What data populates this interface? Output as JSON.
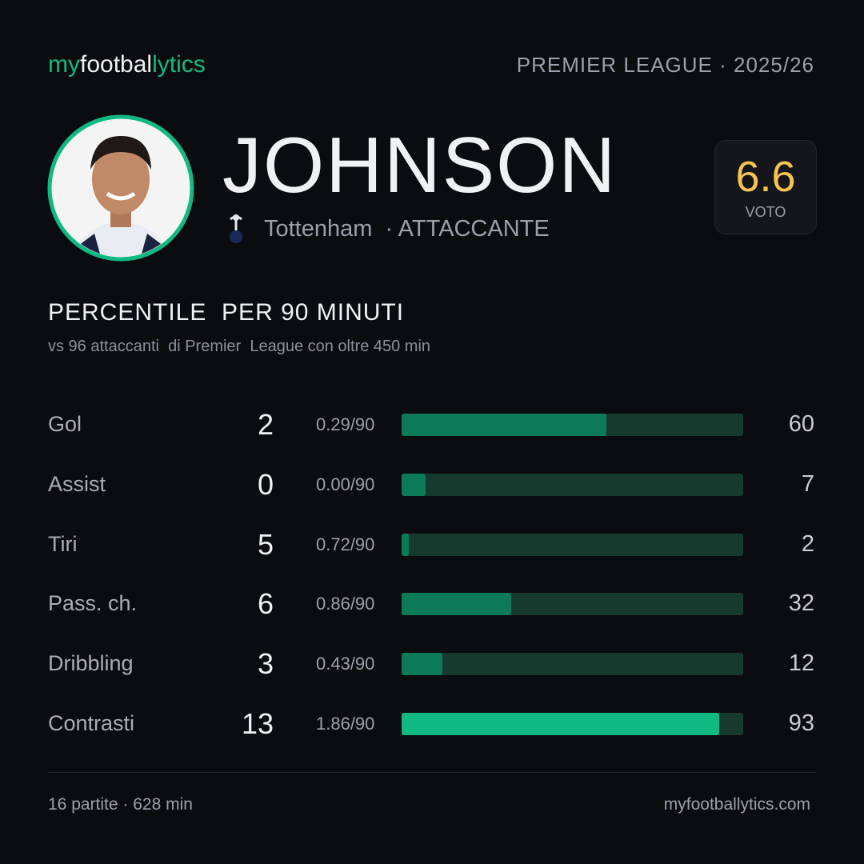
{
  "header": {
    "brand": [
      "my",
      "footbal",
      "lytics"
    ],
    "league": "PREMIER LEAGUE · 2025/26"
  },
  "player": {
    "name": "JOHNSON",
    "team": "Tottenham",
    "role": "· ATTACCANTE",
    "rating": 6.6,
    "rating_label": "VOTO"
  },
  "section": {
    "title": "PERCENTILE  PER 90 MINUTI",
    "subtitle": "vs 96 attaccanti  di Premier  League con oltre 450 min"
  },
  "stats": {
    "xlim": [
      0,
      100
    ],
    "track_color": "#163a2e",
    "rows": [
      {
        "label": "Gol",
        "total": 2,
        "per90": "0.29/90",
        "percentile": 60,
        "color": "#0b7a57"
      },
      {
        "label": "Assist",
        "total": 0,
        "per90": "0.00/90",
        "percentile": 7,
        "color": "#0b7a57"
      },
      {
        "label": "Tiri",
        "total": 5,
        "per90": "0.72/90",
        "percentile": 2,
        "color": "#0b7a57"
      },
      {
        "label": "Pass. ch.",
        "total": 6,
        "per90": "0.86/90",
        "percentile": 32,
        "color": "#0b7a57"
      },
      {
        "label": "Dribbling",
        "total": 3,
        "per90": "0.43/90",
        "percentile": 12,
        "color": "#0b7a57"
      },
      {
        "label": "Contrasti",
        "total": 13,
        "per90": "1.86/90",
        "percentile": 93,
        "color": "#10b981"
      }
    ]
  },
  "footer": {
    "left": "16 partite · 628 min",
    "right": "myfootballytics.com"
  }
}
